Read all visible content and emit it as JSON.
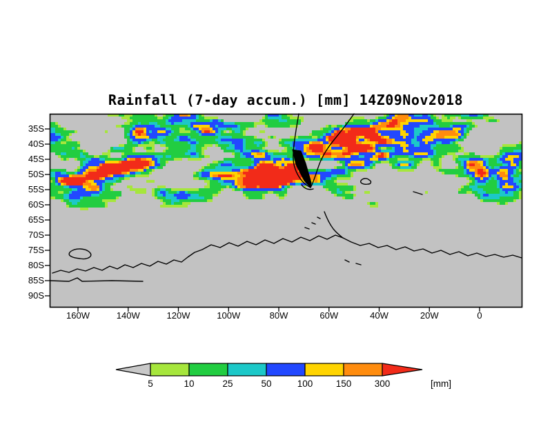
{
  "title": "Rainfall (7-day accum.) [mm] 14Z09Nov2018",
  "axes": {
    "lat_labels": [
      "35S",
      "40S",
      "45S",
      "50S",
      "55S",
      "60S",
      "65S",
      "70S",
      "75S",
      "80S",
      "85S",
      "90S"
    ],
    "lon_labels": [
      "160W",
      "140W",
      "120W",
      "100W",
      "80W",
      "60W",
      "40W",
      "20W",
      "0"
    ]
  },
  "colorbar": {
    "tick_labels": [
      "5",
      "10",
      "25",
      "50",
      "100",
      "150",
      "300"
    ],
    "levels_mm": [
      5,
      10,
      25,
      50,
      100,
      150,
      300
    ],
    "unit_label": "[mm]",
    "below_min_color": "#c8c8c8",
    "segment_colors": [
      "#a6e63c",
      "#22cd41",
      "#1cc8c8",
      "#2248ff",
      "#ffd400",
      "#ff8c0e"
    ],
    "above_max_color": "#f22b19"
  },
  "map": {
    "no_data_color": "#c2c2c2",
    "coastline_color": "#000000"
  }
}
